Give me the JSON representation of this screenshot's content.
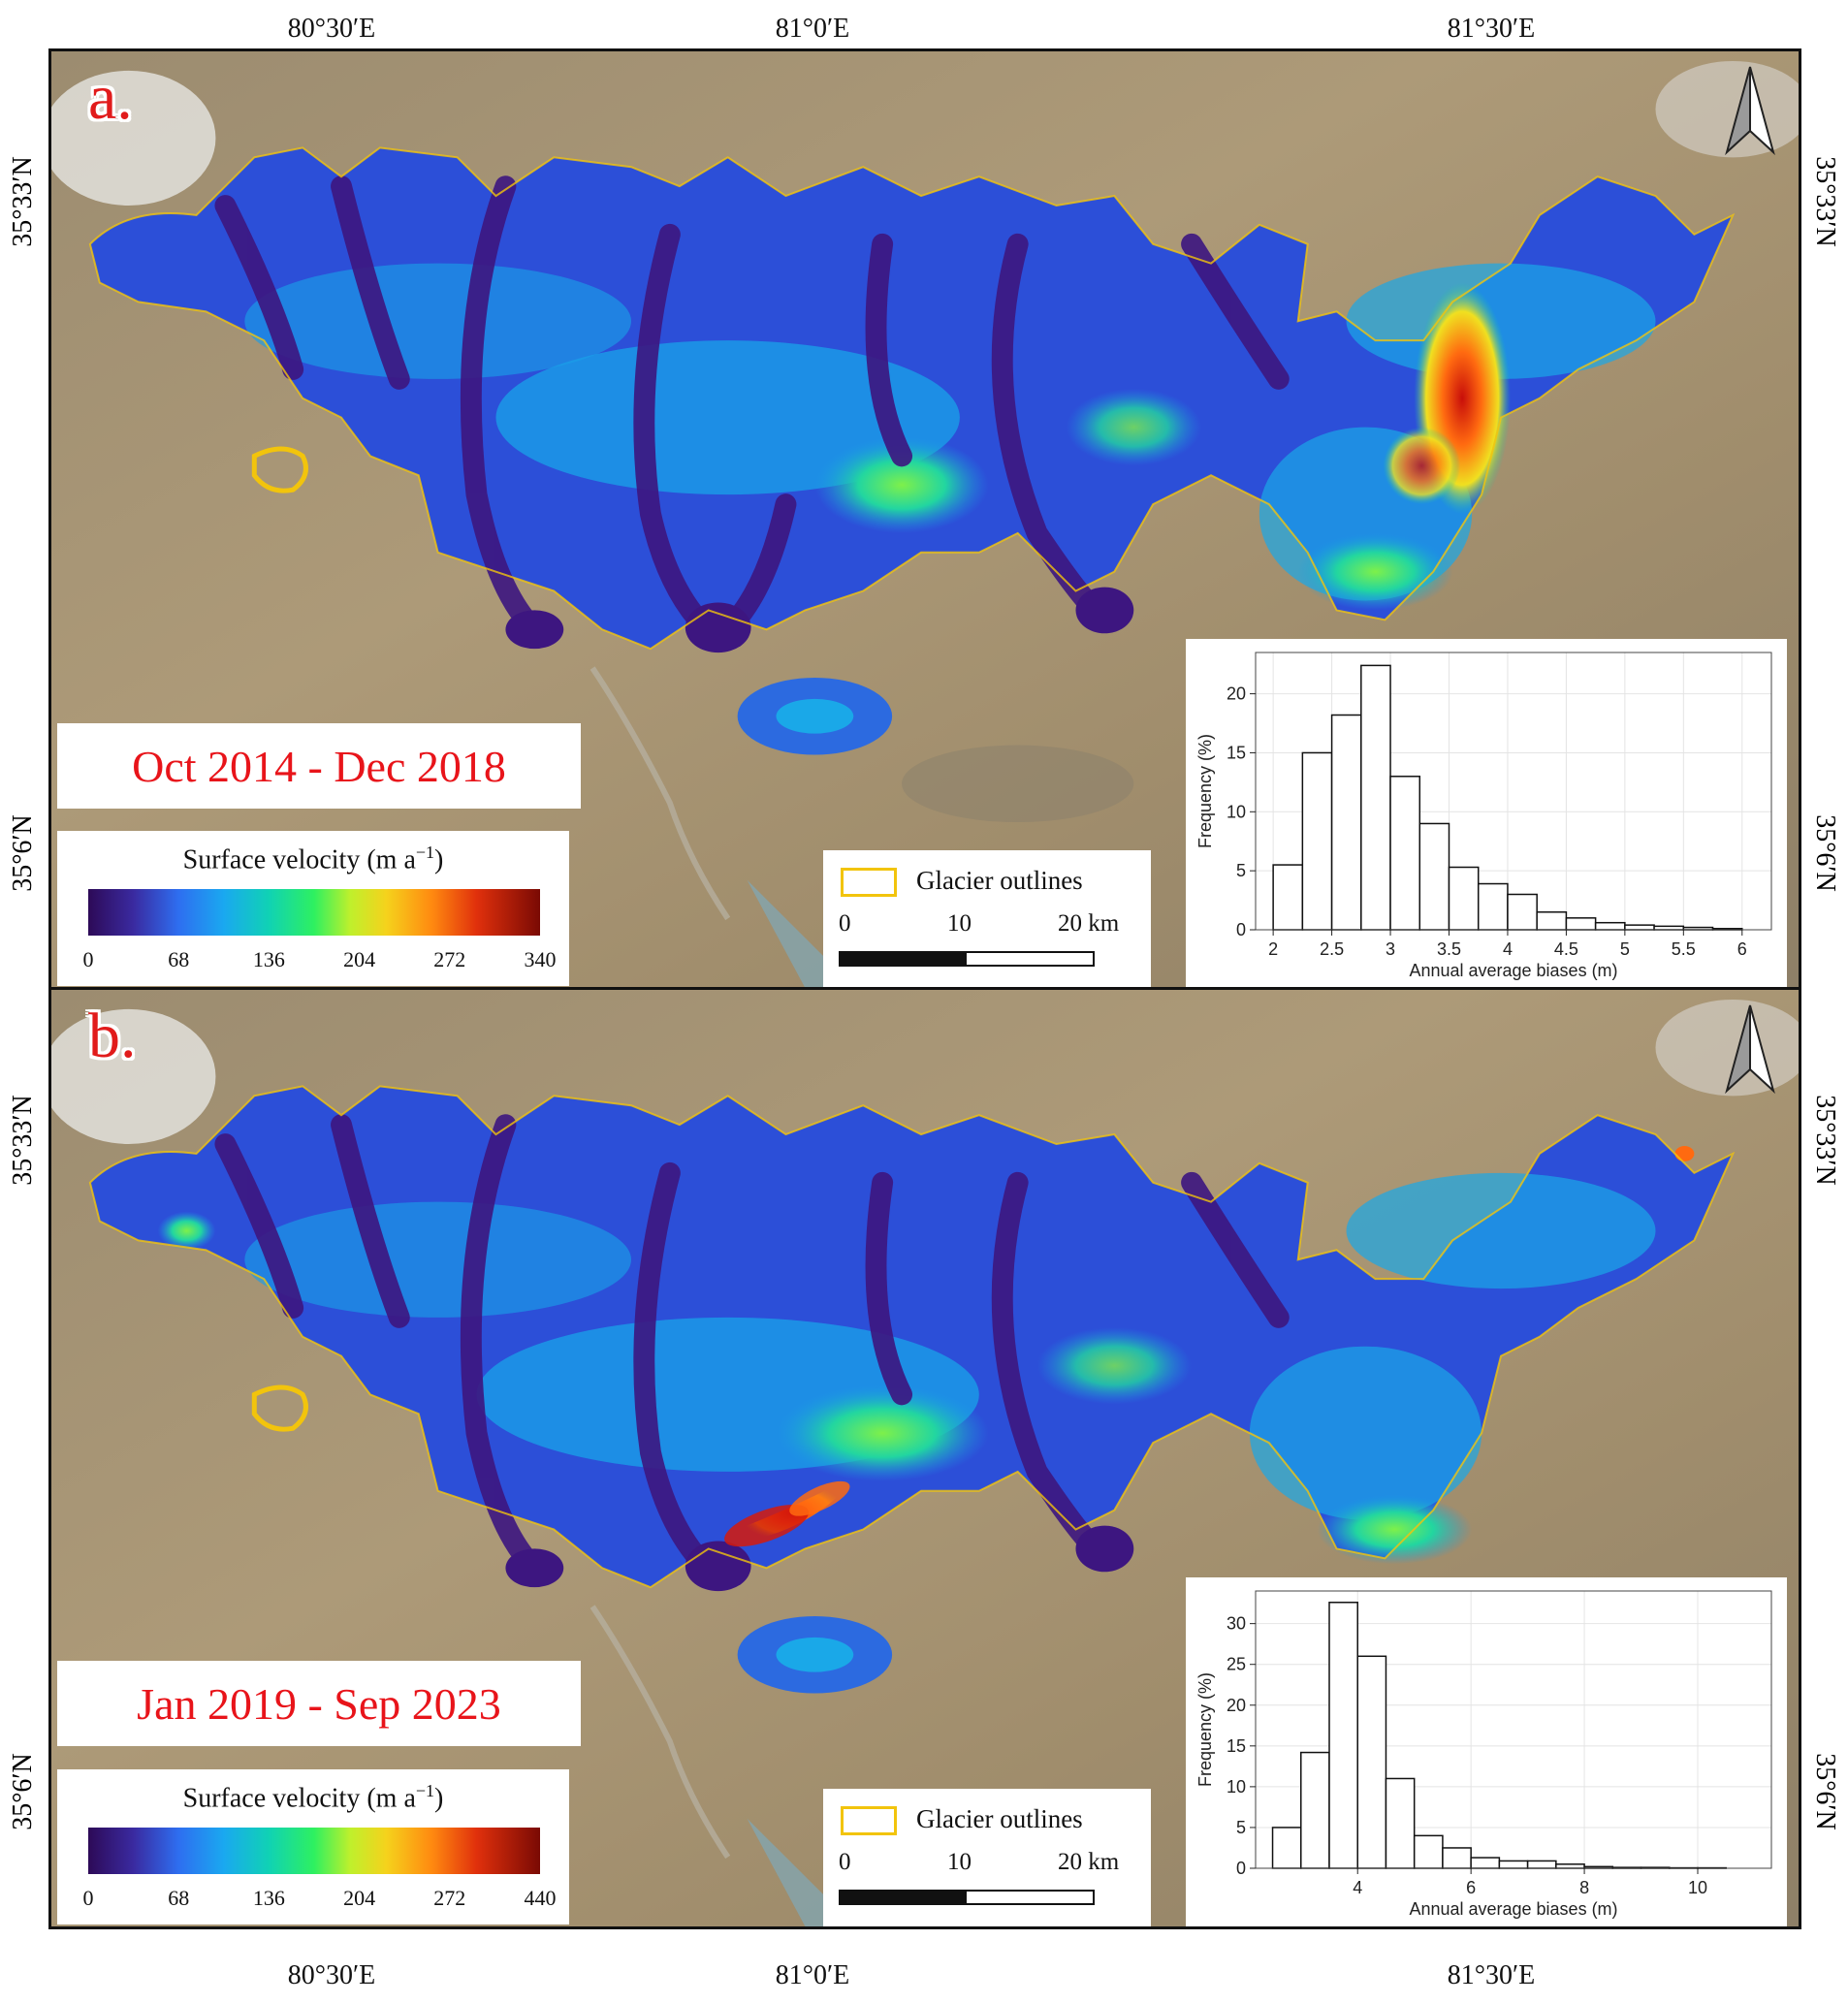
{
  "coordinates": {
    "lon_labels": [
      "80°30′E",
      "81°0′E",
      "81°30′E"
    ],
    "lat_labels": [
      "35°33′N",
      "35°6′N"
    ]
  },
  "panels": [
    {
      "id": "a",
      "letter": "a.",
      "period": "Oct 2014 - Dec 2018",
      "legend": {
        "title": "Surface velocity (m a",
        "title_sup": "−1",
        "title_end": ")",
        "ticks": [
          "0",
          "68",
          "136",
          "204",
          "272",
          "340"
        ]
      },
      "glacier_outlines_label": "Glacier outlines",
      "scale_bar": {
        "labels": [
          "0",
          "10",
          "20 km"
        ]
      },
      "histogram": {
        "type": "bar",
        "xlabel": "Annual average biases (m)",
        "ylabel": "Frequency (%)",
        "x_ticks": [
          "2",
          "2.5",
          "3",
          "3.5",
          "4",
          "4.5",
          "5",
          "5.5",
          "6"
        ],
        "y_ticks": [
          "0",
          "5",
          "10",
          "15",
          "20"
        ],
        "xlim": [
          1.85,
          6.25
        ],
        "ylim": [
          0,
          23.5
        ],
        "bin_start": 2.0,
        "bin_width": 0.25,
        "values": [
          5.5,
          15.0,
          18.2,
          22.4,
          13.0,
          9.0,
          5.3,
          3.9,
          3.0,
          1.5,
          1.0,
          0.6,
          0.4,
          0.3,
          0.2,
          0.1
        ]
      }
    },
    {
      "id": "b",
      "letter": "b.",
      "period": "Jan 2019 - Sep 2023",
      "legend": {
        "title": "Surface velocity (m a",
        "title_sup": "−1",
        "title_end": ")",
        "ticks": [
          "0",
          "68",
          "136",
          "204",
          "272",
          "440"
        ]
      },
      "glacier_outlines_label": "Glacier outlines",
      "scale_bar": {
        "labels": [
          "0",
          "10",
          "20 km"
        ]
      },
      "histogram": {
        "type": "bar",
        "xlabel": "Annual average biases (m)",
        "ylabel": "Frequency (%)",
        "x_ticks": [
          "4",
          "6",
          "8",
          "10"
        ],
        "y_ticks": [
          "0",
          "5",
          "10",
          "15",
          "20",
          "25",
          "30"
        ],
        "xlim": [
          2.2,
          11.3
        ],
        "ylim": [
          0,
          34
        ],
        "bin_start": 2.5,
        "bin_width": 0.5,
        "values": [
          5.0,
          14.2,
          32.6,
          26.0,
          11.0,
          4.0,
          2.5,
          1.3,
          0.9,
          0.9,
          0.5,
          0.2,
          0.1,
          0.1,
          0.05,
          0.05
        ]
      }
    }
  ],
  "colors": {
    "panel_letter": "#e11b1b",
    "period_text": "#e8141a",
    "glacier_outline": "#f2c40c",
    "background_terrain": "#a8946e"
  },
  "icons": [
    "north-arrow-icon"
  ]
}
